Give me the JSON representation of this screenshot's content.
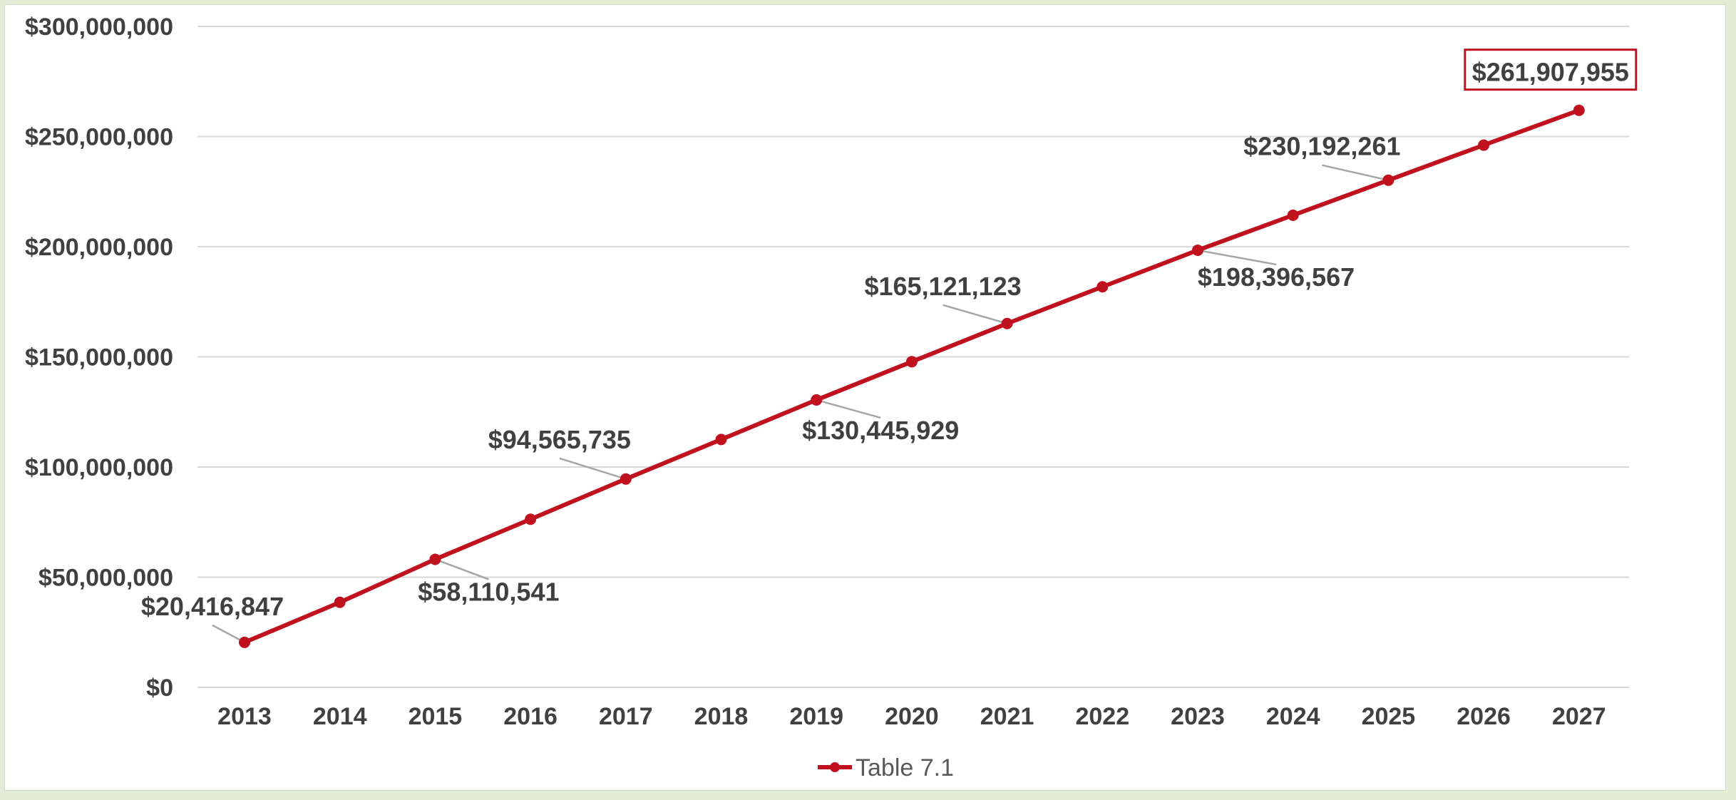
{
  "chart_data": {
    "type": "line",
    "title": "",
    "xlabel": "",
    "ylabel": "",
    "x": [
      "2013",
      "2014",
      "2015",
      "2016",
      "2017",
      "2018",
      "2019",
      "2020",
      "2021",
      "2022",
      "2023",
      "2024",
      "2025",
      "2026",
      "2027"
    ],
    "ylim": [
      0,
      300000000
    ],
    "y_ticks": [
      "$0",
      "$50,000,000",
      "$100,000,000",
      "$150,000,000",
      "$200,000,000",
      "$250,000,000",
      "$300,000,000"
    ],
    "grid": true,
    "legend_position": "bottom",
    "series": [
      {
        "name": "Table 7.1",
        "color": "#c0111f",
        "values": [
          20416847,
          38600000,
          58110541,
          76300000,
          94565735,
          112500000,
          130445929,
          147800000,
          165121123,
          181800000,
          198396567,
          214300000,
          230192261,
          246100000,
          261907955
        ]
      }
    ],
    "data_labels": [
      {
        "index": 0,
        "text": "$20,416,847"
      },
      {
        "index": 2,
        "text": "$58,110,541"
      },
      {
        "index": 4,
        "text": "$94,565,735"
      },
      {
        "index": 6,
        "text": "$130,445,929"
      },
      {
        "index": 8,
        "text": "$165,121,123"
      },
      {
        "index": 10,
        "text": "$198,396,567"
      },
      {
        "index": 12,
        "text": "$230,192,261"
      },
      {
        "index": 14,
        "text": "$261,907,955"
      }
    ]
  }
}
